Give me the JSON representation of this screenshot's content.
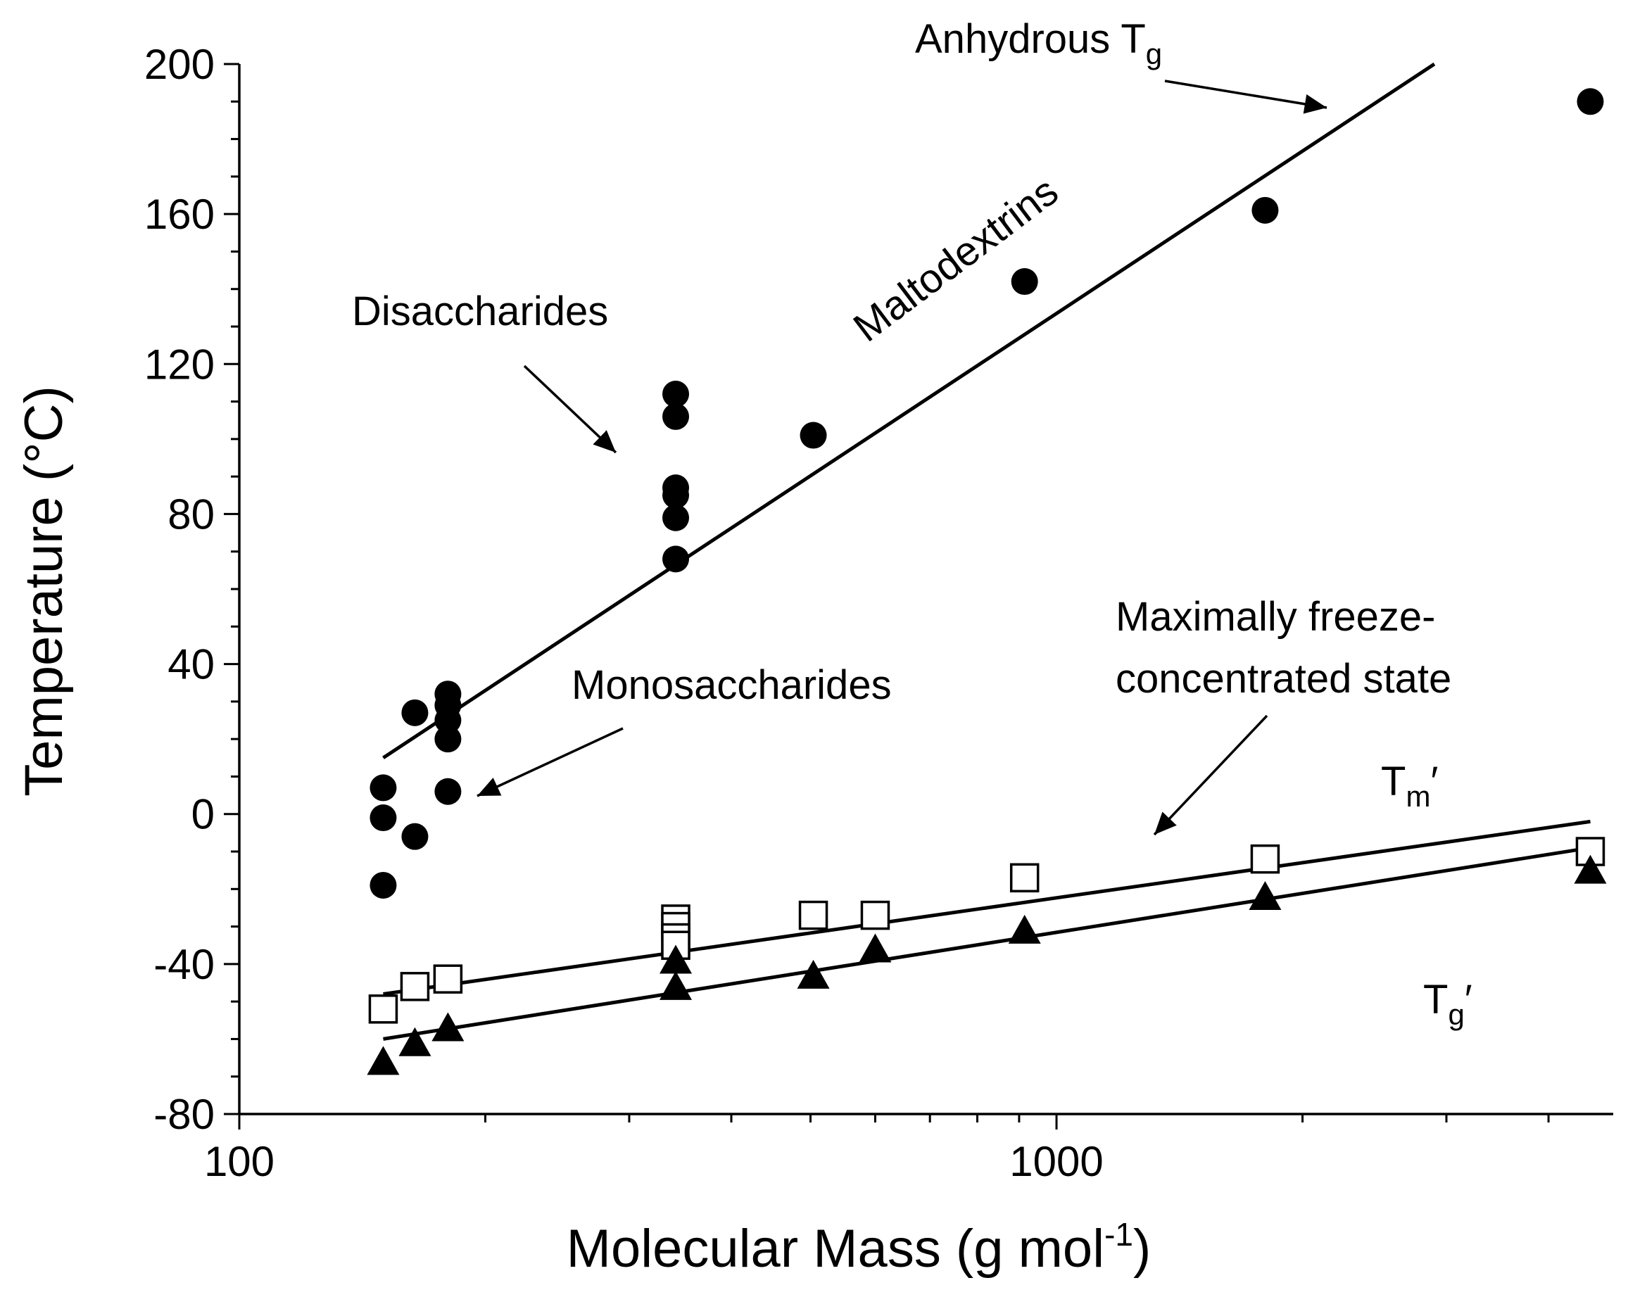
{
  "chart_data": {
    "type": "scatter",
    "xscale": "log",
    "xlabel": "Molecular Mass (g mol",
    "xlabel_sup": "-1",
    "xlabel_end": ")",
    "ylabel": "Temperature (°C)",
    "xlim": [
      100,
      4800
    ],
    "ylim": [
      -80,
      200
    ],
    "x_tick_labels": [
      {
        "value": 100,
        "label": "100"
      },
      {
        "value": 1000,
        "label": "1000"
      }
    ],
    "y_tick_labels": [
      {
        "value": 200,
        "label": "200"
      },
      {
        "value": 160,
        "label": "160"
      },
      {
        "value": 120,
        "label": "120"
      },
      {
        "value": 80,
        "label": "80"
      },
      {
        "value": 40,
        "label": "40"
      },
      {
        "value": 0,
        "label": "0"
      },
      {
        "value": -40,
        "label": "-40"
      },
      {
        "value": -80,
        "label": "-80"
      }
    ],
    "series": [
      {
        "name": "Anhydrous Tg",
        "marker": "filled-circle",
        "points": [
          [
            150,
            7
          ],
          [
            150,
            -1
          ],
          [
            150,
            -19
          ],
          [
            164,
            27
          ],
          [
            164,
            -6
          ],
          [
            180,
            32
          ],
          [
            180,
            29
          ],
          [
            180,
            25
          ],
          [
            180,
            20
          ],
          [
            180,
            6
          ],
          [
            342,
            112
          ],
          [
            342,
            106
          ],
          [
            342,
            87
          ],
          [
            342,
            85
          ],
          [
            342,
            79
          ],
          [
            342,
            68
          ],
          [
            504,
            101
          ],
          [
            914,
            142
          ],
          [
            1800,
            161
          ],
          [
            4500,
            190
          ]
        ]
      },
      {
        "name": "Tm'",
        "marker": "open-square",
        "points": [
          [
            150,
            -52
          ],
          [
            164,
            -46
          ],
          [
            180,
            -44
          ],
          [
            342,
            -28
          ],
          [
            342,
            -30
          ],
          [
            342,
            -33
          ],
          [
            342,
            -35
          ],
          [
            504,
            -27
          ],
          [
            600,
            -27
          ],
          [
            914,
            -17
          ],
          [
            1800,
            -12
          ],
          [
            4500,
            -10
          ]
        ]
      },
      {
        "name": "Tg'",
        "marker": "filled-triangle",
        "points": [
          [
            150,
            -66
          ],
          [
            164,
            -61
          ],
          [
            180,
            -57
          ],
          [
            342,
            -39
          ],
          [
            342,
            -46
          ],
          [
            504,
            -43
          ],
          [
            600,
            -36
          ],
          [
            914,
            -31
          ],
          [
            1800,
            -22
          ],
          [
            4500,
            -15
          ]
        ]
      }
    ],
    "fit_lines": [
      {
        "name": "anhydrous-tg-fit",
        "points": [
          [
            150,
            15
          ],
          [
            2900,
            200
          ]
        ]
      },
      {
        "name": "tm-prime-fit",
        "points": [
          [
            150,
            -48
          ],
          [
            4500,
            -2
          ]
        ]
      },
      {
        "name": "tg-prime-fit",
        "points": [
          [
            150,
            -60
          ],
          [
            4500,
            -9
          ]
        ]
      }
    ],
    "annotations": {
      "anhydrous": {
        "main": "Anhydrous T",
        "sub": "g"
      },
      "maltodextrins": "Maltodextrins",
      "disaccharides": "Disaccharides",
      "monosaccharides": "Monosaccharides",
      "freeze_line1": "Maximally freeze-",
      "freeze_line2": "concentrated state",
      "tm_prime": {
        "main": "T",
        "sub": "m",
        "suffix": "′"
      },
      "tg_prime": {
        "main": "T",
        "sub": "g",
        "suffix": "′"
      }
    }
  }
}
